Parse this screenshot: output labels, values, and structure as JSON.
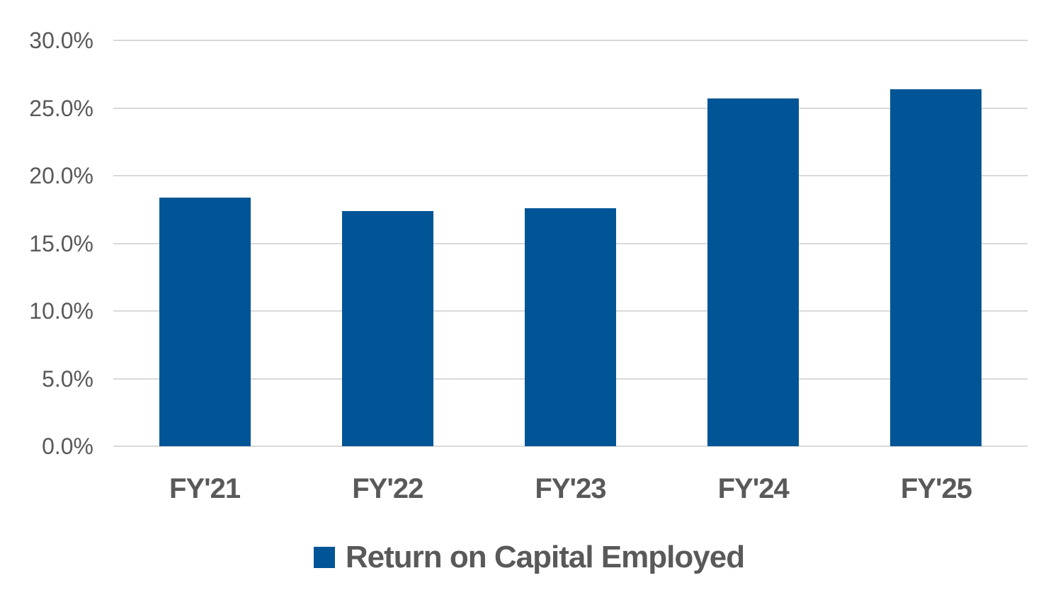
{
  "chart_data": {
    "type": "bar",
    "title": "",
    "xlabel": "",
    "ylabel": "",
    "categories": [
      "FY'21",
      "FY'22",
      "FY'23",
      "FY'24",
      "FY'25"
    ],
    "series": [
      {
        "name": "Return on Capital Employed",
        "values": [
          18.4,
          17.4,
          17.6,
          25.7,
          26.4
        ],
        "unit": "%"
      }
    ],
    "ylim": [
      0,
      30
    ],
    "ytick_step": 5,
    "ytick_labels": [
      "0.0%",
      "5.0%",
      "10.0%",
      "15.0%",
      "20.0%",
      "25.0%",
      "30.0%"
    ],
    "grid": true,
    "legend": {
      "position": "bottom",
      "items": [
        {
          "label": "Return on Capital Employed",
          "swatch": "square"
        }
      ]
    },
    "colors": {
      "bar": "#005596",
      "gridline": "#d9d9d9",
      "tick_text": "#595959",
      "category_text": "#595959",
      "legend_text": "#595959",
      "background": "#ffffff"
    }
  }
}
